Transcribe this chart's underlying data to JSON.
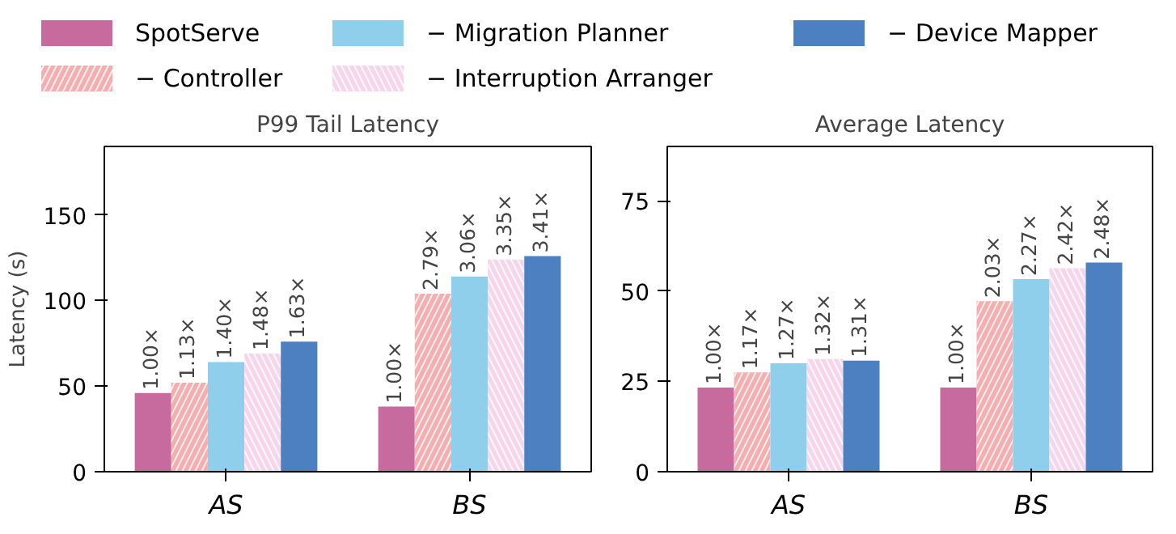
{
  "chart_data": [
    {
      "type": "bar",
      "title": "P99 Tail Latency",
      "ylabel": "Latency (s)",
      "categories": [
        "AS",
        "BS"
      ],
      "ylim": [
        0,
        190
      ],
      "yticks": [
        0,
        50,
        100,
        150
      ],
      "grid": false,
      "legend": "top",
      "series": [
        {
          "name": "SpotServe",
          "color": "#c76b9f",
          "values": [
            46,
            38
          ]
        },
        {
          "name": "− Controller",
          "color": "#f4aeb0",
          "values": [
            52,
            104
          ]
        },
        {
          "name": "− Migration Planner",
          "color": "#8fcfeb",
          "values": [
            64,
            114
          ]
        },
        {
          "name": "− Interruption Arranger",
          "color": "#f5d7ec",
          "values": [
            69,
            124
          ]
        },
        {
          "name": "− Device Mapper",
          "color": "#4d80c1",
          "values": [
            76,
            126
          ]
        }
      ],
      "annotations": [
        "1.00×",
        "1.13×",
        "1.40×",
        "1.48×",
        "1.63×",
        "1.00×",
        "2.79×",
        "3.06×",
        "3.35×",
        "3.41×"
      ]
    },
    {
      "type": "bar",
      "title": "Average Latency",
      "categories": [
        "AS",
        "BS"
      ],
      "ylim": [
        0,
        90
      ],
      "yticks": [
        0,
        25,
        50,
        75
      ],
      "grid": false,
      "series": [
        {
          "color": "#c76b9f",
          "values": [
            23.3,
            23.3
          ]
        },
        {
          "color": "#f4aeb0",
          "values": [
            27.5,
            47.2
          ]
        },
        {
          "color": "#8fcfeb",
          "values": [
            30,
            53.3
          ]
        },
        {
          "color": "#f5d7ec",
          "values": [
            31.2,
            56.3
          ]
        },
        {
          "color": "#4d80c1",
          "values": [
            30.7,
            57.9
          ]
        }
      ],
      "annotations": [
        "1.00×",
        "1.17×",
        "1.27×",
        "1.32×",
        "1.31×",
        "1.00×",
        "2.03×",
        "2.27×",
        "2.42×",
        "2.48×"
      ]
    }
  ]
}
